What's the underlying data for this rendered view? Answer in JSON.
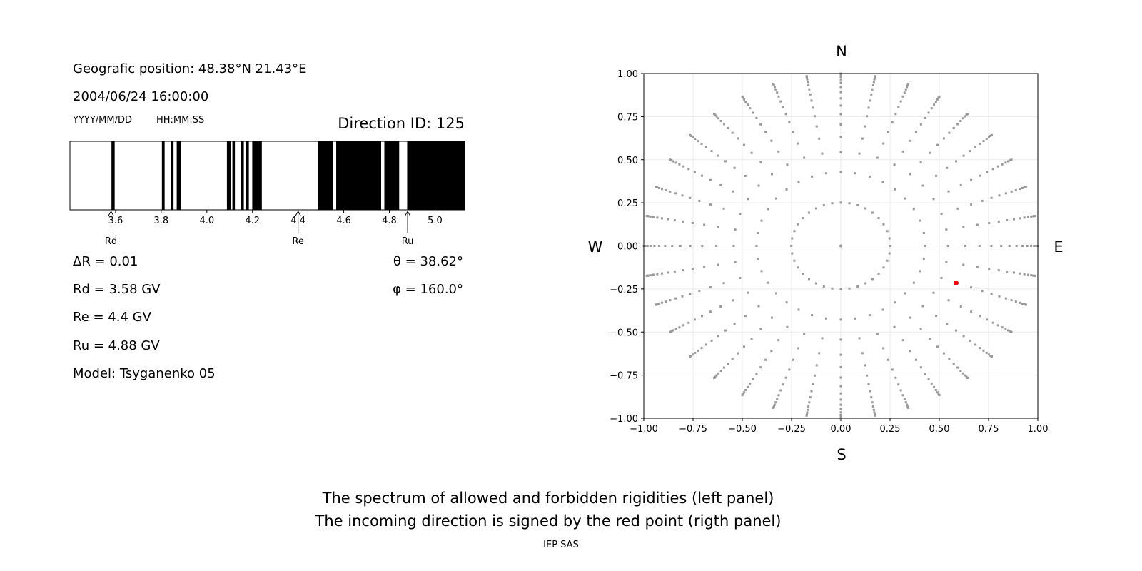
{
  "left_panel": {
    "position": "Geografic position: 48.38°N 21.43°E",
    "datetime": "2004/06/24 16:00:00",
    "date_format": "YYYY/MM/DD",
    "time_format": "HH:MM:SS",
    "direction_id": "Direction ID: 125",
    "delta_r": "ΔR = 0.01",
    "rd": "Rd = 3.58 GV",
    "re": "Re = 4.4 GV",
    "ru": "Ru = 4.88 GV",
    "model": "Model: Tsyganenko 05",
    "theta": "θ = 38.62°",
    "phi": "φ = 160.0°"
  },
  "captions": {
    "line1": "The spectrum of allowed and forbidden rigidities (left panel)",
    "line2": "The incoming direction is signed by the red point (rigth panel)",
    "credit": "IEP SAS"
  },
  "chart_data": [
    {
      "type": "bar",
      "xlim": [
        3.4,
        5.13
      ],
      "xticks": [
        "3.6",
        "3.8",
        "4.0",
        "4.2",
        "4.4",
        "4.6",
        "4.8",
        "5.0"
      ],
      "forbidden_bands": [
        [
          3.582,
          3.596
        ],
        [
          3.803,
          3.815
        ],
        [
          3.842,
          3.854
        ],
        [
          3.868,
          3.885
        ],
        [
          4.088,
          4.104
        ],
        [
          4.112,
          4.123
        ],
        [
          4.149,
          4.162
        ],
        [
          4.171,
          4.184
        ],
        [
          4.199,
          4.241
        ],
        [
          4.488,
          4.553
        ],
        [
          4.567,
          4.764
        ],
        [
          4.778,
          4.843
        ],
        [
          4.878,
          5.13
        ]
      ],
      "markers": [
        {
          "label": "Rd",
          "value": 3.58
        },
        {
          "label": "Re",
          "value": 4.4
        },
        {
          "label": "Ru",
          "value": 4.88
        }
      ],
      "colors": {
        "forbidden": "#000000",
        "allowed": "#ffffff"
      }
    },
    {
      "type": "scatter",
      "xlim": [
        -1,
        1
      ],
      "ylim": [
        -1,
        1
      ],
      "grid": true,
      "xticks": [
        "−1.00",
        "−0.75",
        "−0.50",
        "−0.25",
        "0.00",
        "0.25",
        "0.50",
        "0.75",
        "1.00"
      ],
      "yticks": [
        "−1.00",
        "−0.75",
        "−0.50",
        "−0.25",
        "0.00",
        "0.25",
        "0.50",
        "0.75",
        "1.00"
      ],
      "directions": {
        "N": "N",
        "S": "S",
        "W": "W",
        "E": "E"
      },
      "grid_points": {
        "azimuth_step_deg": 10,
        "radii": [
          0.251,
          0.428,
          0.544,
          0.632,
          0.704,
          0.764,
          0.814,
          0.856,
          0.892,
          0.922,
          0.946,
          0.966,
          0.981,
          0.992,
          0.998,
          1.0
        ],
        "center": [
          0,
          0
        ],
        "color": "#999999"
      },
      "incoming_point": {
        "x": 0.585,
        "y": -0.215,
        "color": "#ff0000"
      }
    }
  ]
}
